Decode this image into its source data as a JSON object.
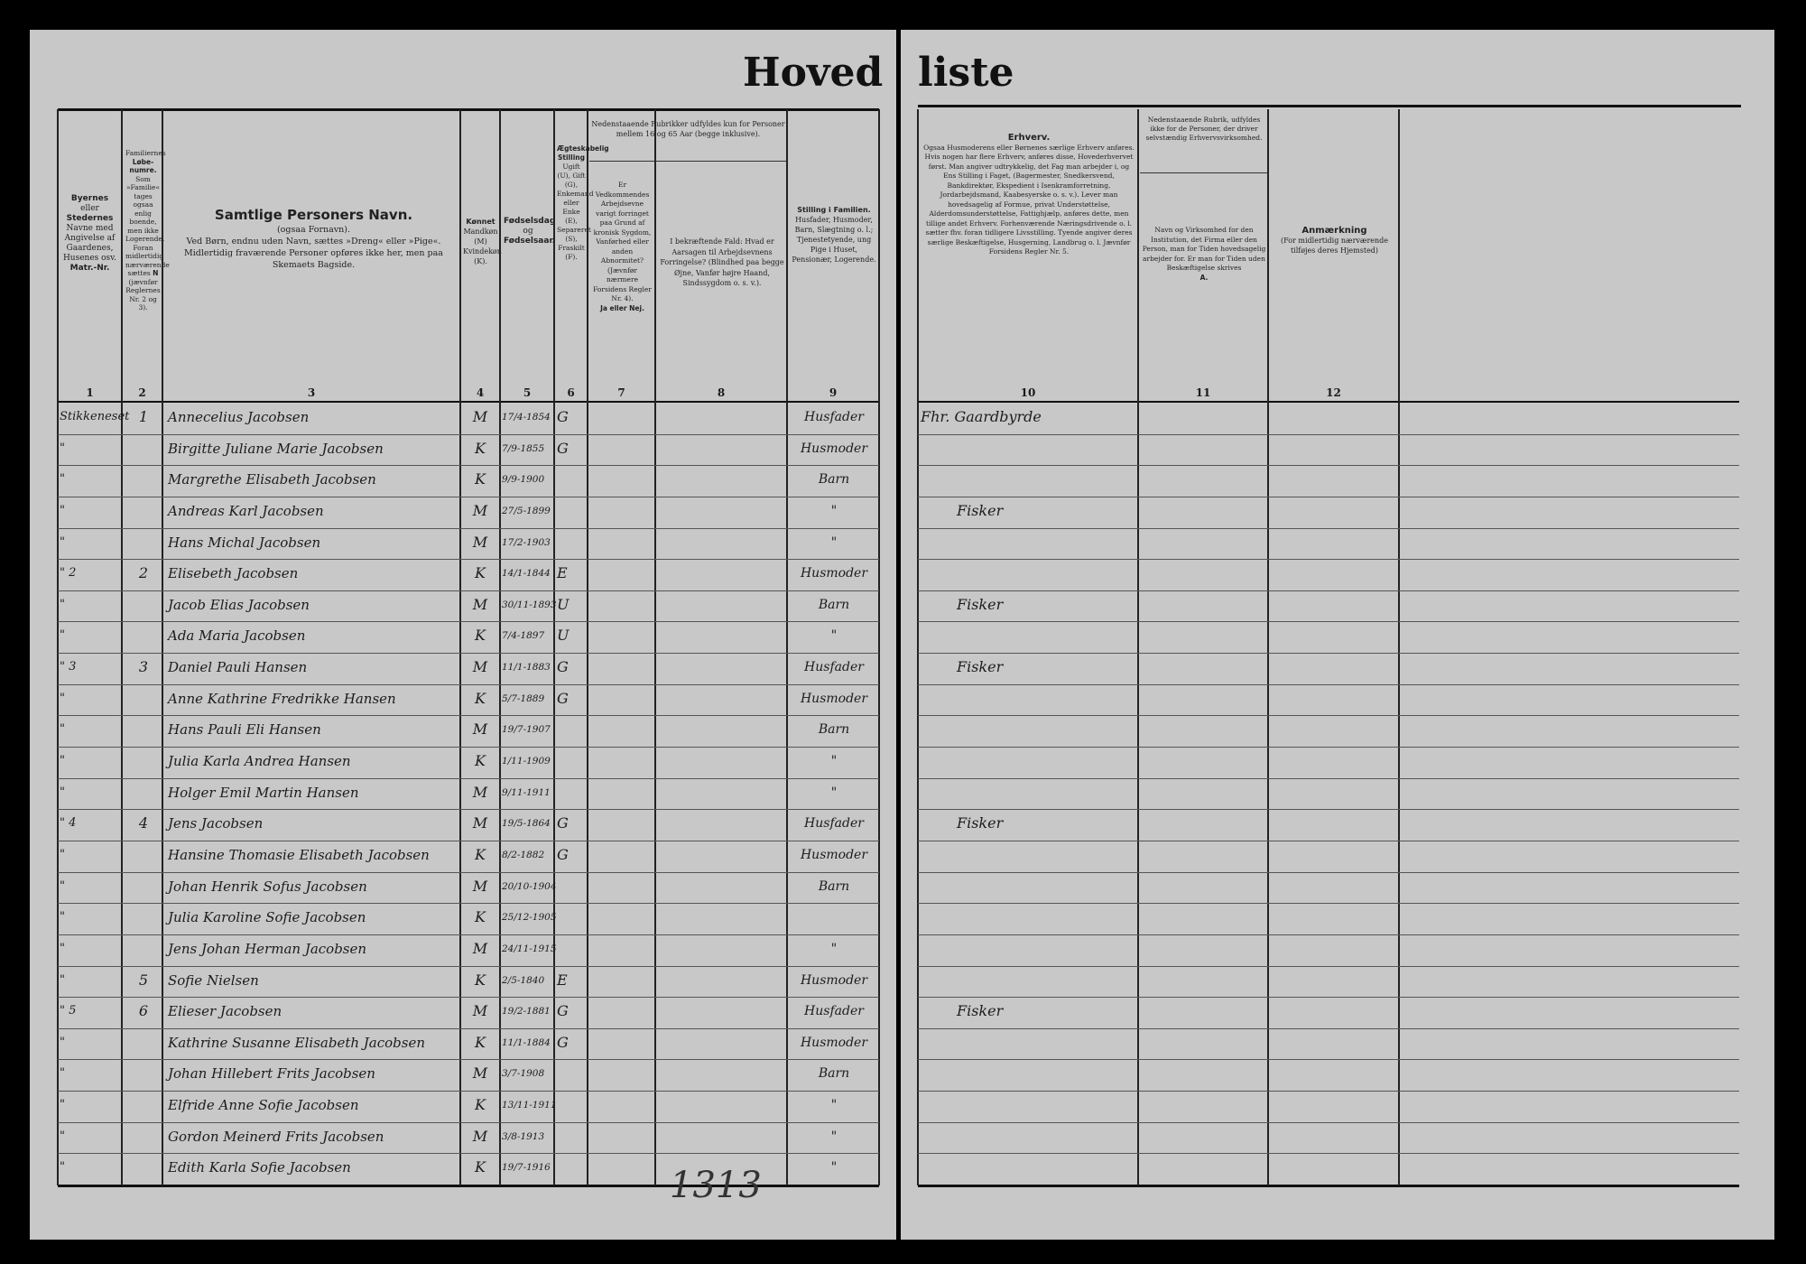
{
  "title": {
    "left": "Hoved",
    "right": "liste"
  },
  "headers": {
    "col1": {
      "lines": [
        "Byernes",
        "eller",
        "Stedernes",
        "Navne med Angivelse af Gaardenes, Husenes osv.",
        "Matr.-Nr."
      ],
      "num": "1"
    },
    "col2": {
      "lines": [
        "Familiernes",
        "Løbe-numre.",
        "Som »Familie« tages ogsaa enlig boende, men ikke Logerende. Foran midlertidig nærværende sættes",
        "N",
        "(jævnfør Reglernes Nr. 2 og 3)."
      ],
      "num": "2"
    },
    "col3": {
      "title": "Samtlige Personers Navn.",
      "sub": "(ogsaa Fornavn).",
      "line1": "Ved Børn, endnu uden Navn, sættes »Dreng« eller »Pige«.",
      "line2": "Midlertidig fraværende Personer opføres ikke her, men paa Skemaets Bagside.",
      "num": "3"
    },
    "col4": {
      "title": "Kønnet",
      "text": "Mandkøn (M) Kvindekøn (K).",
      "num": "4"
    },
    "col5": {
      "title": "Fødselsdag",
      "mid": "og",
      "title2": "Fødselsaar.",
      "num": "5"
    },
    "col6": {
      "title": "Ægteskabelig Stilling",
      "text": "Ugift (U), Gift (G), Enkemand eller Enke (E), Separeret (S), Fraskilt (F).",
      "num": "6"
    },
    "col78_span": "Nedenstaaende Rubrikker udfyldes kun for Personer mellem 16 og 65 Aar (begge inklusive).",
    "col7": {
      "text": "Er Vedkommendes Arbejdsevne varigt forringet paa Grund af kronisk Sygdom, Vanførhed eller anden Abnormitet? (Jævnfør nærmere Forsidens Regler Nr. 4).",
      "answer": "Ja eller Nej.",
      "num": "7"
    },
    "col8": {
      "text": "I bekræftende Fald: Hvad er Aarsagen til Arbejdsevnens Forringelse? (Blindhed paa begge Øjne, Vanfør højre Haand, Sindssygdom o. s. v.).",
      "num": "8"
    },
    "col9": {
      "title": "Stilling i Familien.",
      "text": "Husfader, Husmoder, Barn, Slægtning o. l.; Tjenestetyende, ung Pige i Huset, Pensionær, Logerende.",
      "num": "9"
    },
    "col10": {
      "title": "Erhverv.",
      "text": "Ogsaa Husmoderens eller Børnenes særlige Erhverv anføres. Hvis nogen har flere Erhverv, anføres disse, Hovederhvervet først. Man angiver udtrykkelig, det Fag man arbejder i, og Ens Stilling i Faget, (Bagermester, Snedkersvend, Bankdirektør, Ekspedient i Isenkramforretning, Jordarbejdsmand, Kaabesyerske o. s. v.). Lever man hovedsagelig af Formue, privat Understøttelse, Alderdomsunderstøttelse, Fattighjælp, anføres dette, men tillige andet Erhverv. Forhenværende Næringsdrivende o. l. sætter fhv. foran tidligere Livsstilling. Tyende angiver deres særlige Beskæftigelse, Husgerning, Landbrug o. l. Jævnfør Forsidens Regler Nr. 5.",
      "num": "10"
    },
    "col11": {
      "top": "Nedenstaaende Rubrik, udfyldes ikke for de Personer, der driver selvstændig Erhvervsvirksomhed.",
      "text": "Navn og Virksomhed for den Institution, det Firma eller den Person, man for Tiden hovedsagelig arbejder for. Er man for Tiden uden Beskæftigelse skrives",
      "mark": "A.",
      "num": "11"
    },
    "col12": {
      "title": "Anmærkning",
      "text": "(For midlertidig nærværende tilføjes deres Hjemsted)",
      "num": "12"
    }
  },
  "rows": [
    {
      "place": "Stikkeneset",
      "fam": "1",
      "name": "Annecelius Jacobsen",
      "sex": "M",
      "born": "17/4-1854",
      "civil": "G",
      "role": "Husfader",
      "occupation": "Fhr. Gaardbyrde"
    },
    {
      "place": "\"",
      "fam": "",
      "name": "Birgitte Juliane Marie Jacobsen",
      "sex": "K",
      "born": "7/9-1855",
      "civil": "G",
      "role": "Husmoder",
      "occupation": ""
    },
    {
      "place": "\"",
      "fam": "",
      "name": "Margrethe Elisabeth Jacobsen",
      "sex": "K",
      "born": "9/9-1900",
      "civil": "",
      "role": "Barn",
      "occupation": ""
    },
    {
      "place": "\"",
      "fam": "",
      "name": "Andreas Karl Jacobsen",
      "sex": "M",
      "born": "27/5-1899",
      "civil": "",
      "role": "\"",
      "occupation": "Fisker"
    },
    {
      "place": "\"",
      "fam": "",
      "name": "Hans Michal Jacobsen",
      "sex": "M",
      "born": "17/2-1903",
      "civil": "",
      "role": "\"",
      "occupation": ""
    },
    {
      "place": "\" 2",
      "fam": "2",
      "name": "Elisebeth Jacobsen",
      "sex": "K",
      "born": "14/1-1844",
      "civil": "E",
      "role": "Husmoder",
      "occupation": ""
    },
    {
      "place": "\"",
      "fam": "",
      "name": "Jacob Elias Jacobsen",
      "sex": "M",
      "born": "30/11-1893",
      "civil": "U",
      "role": "Barn",
      "occupation": "Fisker"
    },
    {
      "place": "\"",
      "fam": "",
      "name": "Ada Maria Jacobsen",
      "sex": "K",
      "born": "7/4-1897",
      "civil": "U",
      "role": "\"",
      "occupation": ""
    },
    {
      "place": "\" 3",
      "fam": "3",
      "name": "Daniel Pauli Hansen",
      "sex": "M",
      "born": "11/1-1883",
      "civil": "G",
      "role": "Husfader",
      "occupation": "Fisker"
    },
    {
      "place": "\"",
      "fam": "",
      "name": "Anne Kathrine Fredrikke Hansen",
      "sex": "K",
      "born": "5/7-1889",
      "civil": "G",
      "role": "Husmoder",
      "occupation": ""
    },
    {
      "place": "\"",
      "fam": "",
      "name": "Hans Pauli Eli Hansen",
      "sex": "M",
      "born": "19/7-1907",
      "civil": "",
      "role": "Barn",
      "occupation": ""
    },
    {
      "place": "\"",
      "fam": "",
      "name": "Julia Karla Andrea Hansen",
      "sex": "K",
      "born": "1/11-1909",
      "civil": "",
      "role": "\"",
      "occupation": ""
    },
    {
      "place": "\"",
      "fam": "",
      "name": "Holger Emil Martin Hansen",
      "sex": "M",
      "born": "9/11-1911",
      "civil": "",
      "role": "\"",
      "occupation": ""
    },
    {
      "place": "\" 4",
      "fam": "4",
      "name": "Jens Jacobsen",
      "sex": "M",
      "born": "19/5-1864",
      "civil": "G",
      "role": "Husfader",
      "occupation": "Fisker"
    },
    {
      "place": "\"",
      "fam": "",
      "name": "Hansine Thomasie Elisabeth Jacobsen",
      "sex": "K",
      "born": "8/2-1882",
      "civil": "G",
      "role": "Husmoder",
      "occupation": ""
    },
    {
      "place": "\"",
      "fam": "",
      "name": "Johan Henrik Sofus Jacobsen",
      "sex": "M",
      "born": "20/10-1904",
      "civil": "",
      "role": "Barn",
      "occupation": ""
    },
    {
      "place": "\"",
      "fam": "",
      "name": "Julia Karoline Sofie Jacobsen",
      "sex": "K",
      "born": "25/12-1905",
      "civil": "",
      "role": "",
      "occupation": ""
    },
    {
      "place": "\"",
      "fam": "",
      "name": "Jens Johan Herman Jacobsen",
      "sex": "M",
      "born": "24/11-1915",
      "civil": "",
      "role": "\"",
      "occupation": ""
    },
    {
      "place": "\"",
      "fam": "5",
      "name": "Sofie Nielsen",
      "sex": "K",
      "born": "2/5-1840",
      "civil": "E",
      "role": "Husmoder",
      "occupation": ""
    },
    {
      "place": "\" 5",
      "fam": "6",
      "name": "Elieser Jacobsen",
      "sex": "M",
      "born": "19/2-1881",
      "civil": "G",
      "role": "Husfader",
      "occupation": "Fisker"
    },
    {
      "place": "\"",
      "fam": "",
      "name": "Kathrine Susanne Elisabeth Jacobsen",
      "sex": "K",
      "born": "11/1-1884",
      "civil": "G",
      "role": "Husmoder",
      "occupation": ""
    },
    {
      "place": "\"",
      "fam": "",
      "name": "Johan Hillebert Frits Jacobsen",
      "sex": "M",
      "born": "3/7-1908",
      "civil": "",
      "role": "Barn",
      "occupation": ""
    },
    {
      "place": "\"",
      "fam": "",
      "name": "Elfride Anne Sofie Jacobsen",
      "sex": "K",
      "born": "13/11-1911",
      "civil": "",
      "role": "\"",
      "occupation": ""
    },
    {
      "place": "\"",
      "fam": "",
      "name": "Gordon Meinerd Frits Jacobsen",
      "sex": "M",
      "born": "3/8-1913",
      "civil": "",
      "role": "\"",
      "occupation": ""
    },
    {
      "place": "\"",
      "fam": "",
      "name": "Edith Karla Sofie Jacobsen",
      "sex": "K",
      "born": "19/7-1916",
      "civil": "",
      "role": "\"",
      "occupation": ""
    }
  ],
  "margin_note": "1313"
}
